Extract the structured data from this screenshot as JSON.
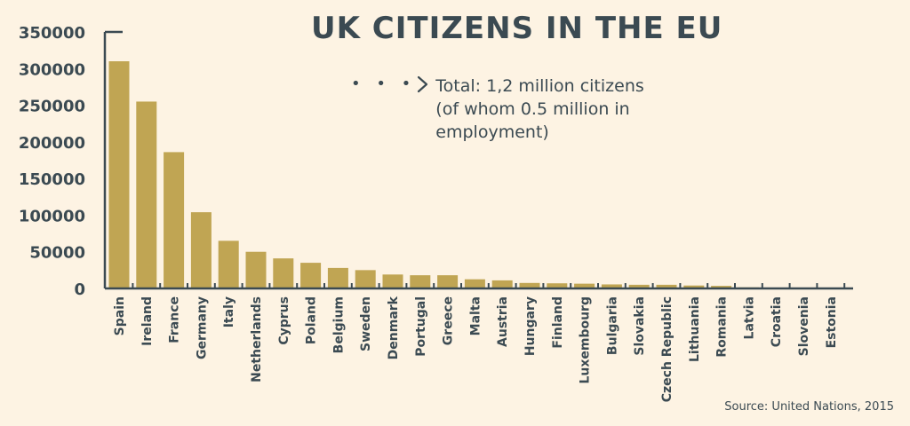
{
  "header": {
    "title": "UK CITIZENS IN THE EU"
  },
  "annotation": {
    "dots": "• • •",
    "text": "Total: 1,2 million citizens (of whom 0.5 million in employment)"
  },
  "footer": {
    "source": "Source: United Nations, 2015"
  },
  "colors": {
    "bar": "#c0a553",
    "axis": "#3b4a52",
    "background": "#fdf3e3",
    "text": "#3b4a52"
  },
  "chart_data": {
    "type": "bar",
    "title": "UK CITIZENS IN THE EU",
    "xlabel": "",
    "ylabel": "",
    "ylim": [
      0,
      350000
    ],
    "yticks": [
      0,
      50000,
      100000,
      150000,
      200000,
      250000,
      300000,
      350000
    ],
    "ytick_labels": [
      "0",
      "50000",
      "100000",
      "150000",
      "200000",
      "250000",
      "300000",
      "350000"
    ],
    "grid": false,
    "categories": [
      "Spain",
      "Ireland",
      "France",
      "Germany",
      "Italy",
      "Netherlands",
      "Cyprus",
      "Poland",
      "Belgium",
      "Sweden",
      "Denmark",
      "Portugal",
      "Greece",
      "Malta",
      "Austria",
      "Hungary",
      "Finland",
      "Luxembourg",
      "Bulgaria",
      "Slovakia",
      "Czech Republic",
      "Lithuania",
      "Romania",
      "Latvia",
      "Croatia",
      "Slovenia",
      "Estonia"
    ],
    "values": [
      310000,
      255000,
      186000,
      104000,
      65000,
      50000,
      41000,
      35000,
      28000,
      25000,
      19000,
      18000,
      18000,
      12500,
      11000,
      7500,
      7000,
      6500,
      5500,
      5000,
      5000,
      4000,
      3500,
      1500,
      1000,
      800,
      500
    ]
  }
}
